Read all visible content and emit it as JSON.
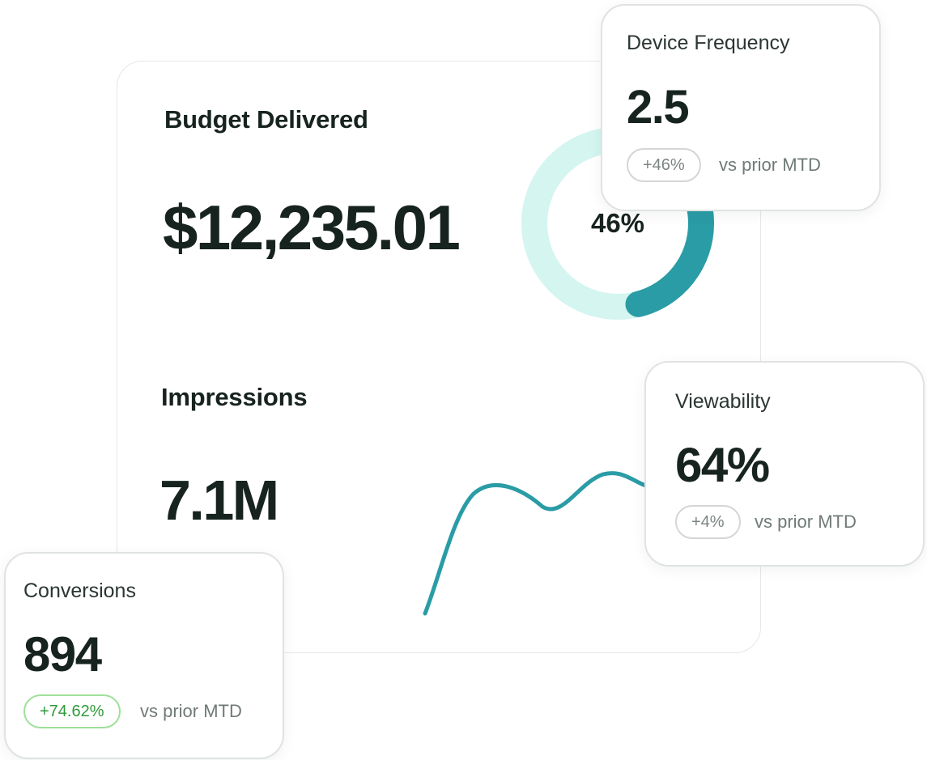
{
  "budget": {
    "title": "Budget Delivered",
    "value": "$12,235.01",
    "percent_label": "46%",
    "progress": 0.46,
    "colors": {
      "track": "#d4f5f0",
      "fill": "#2a9ca6"
    }
  },
  "impressions": {
    "title": "Impressions",
    "value": "7.1M",
    "line_color": "#2a9ca6"
  },
  "device_frequency": {
    "title": "Device Frequency",
    "value": "2.5",
    "change": "+46%",
    "note": "vs prior MTD"
  },
  "viewability": {
    "title": "Viewability",
    "value": "64%",
    "change": "+4%",
    "note": "vs prior MTD"
  },
  "conversions": {
    "title": "Conversions",
    "value": "894",
    "change": "+74.62%",
    "note": "vs prior MTD",
    "change_color": "#2f9a3a"
  }
}
